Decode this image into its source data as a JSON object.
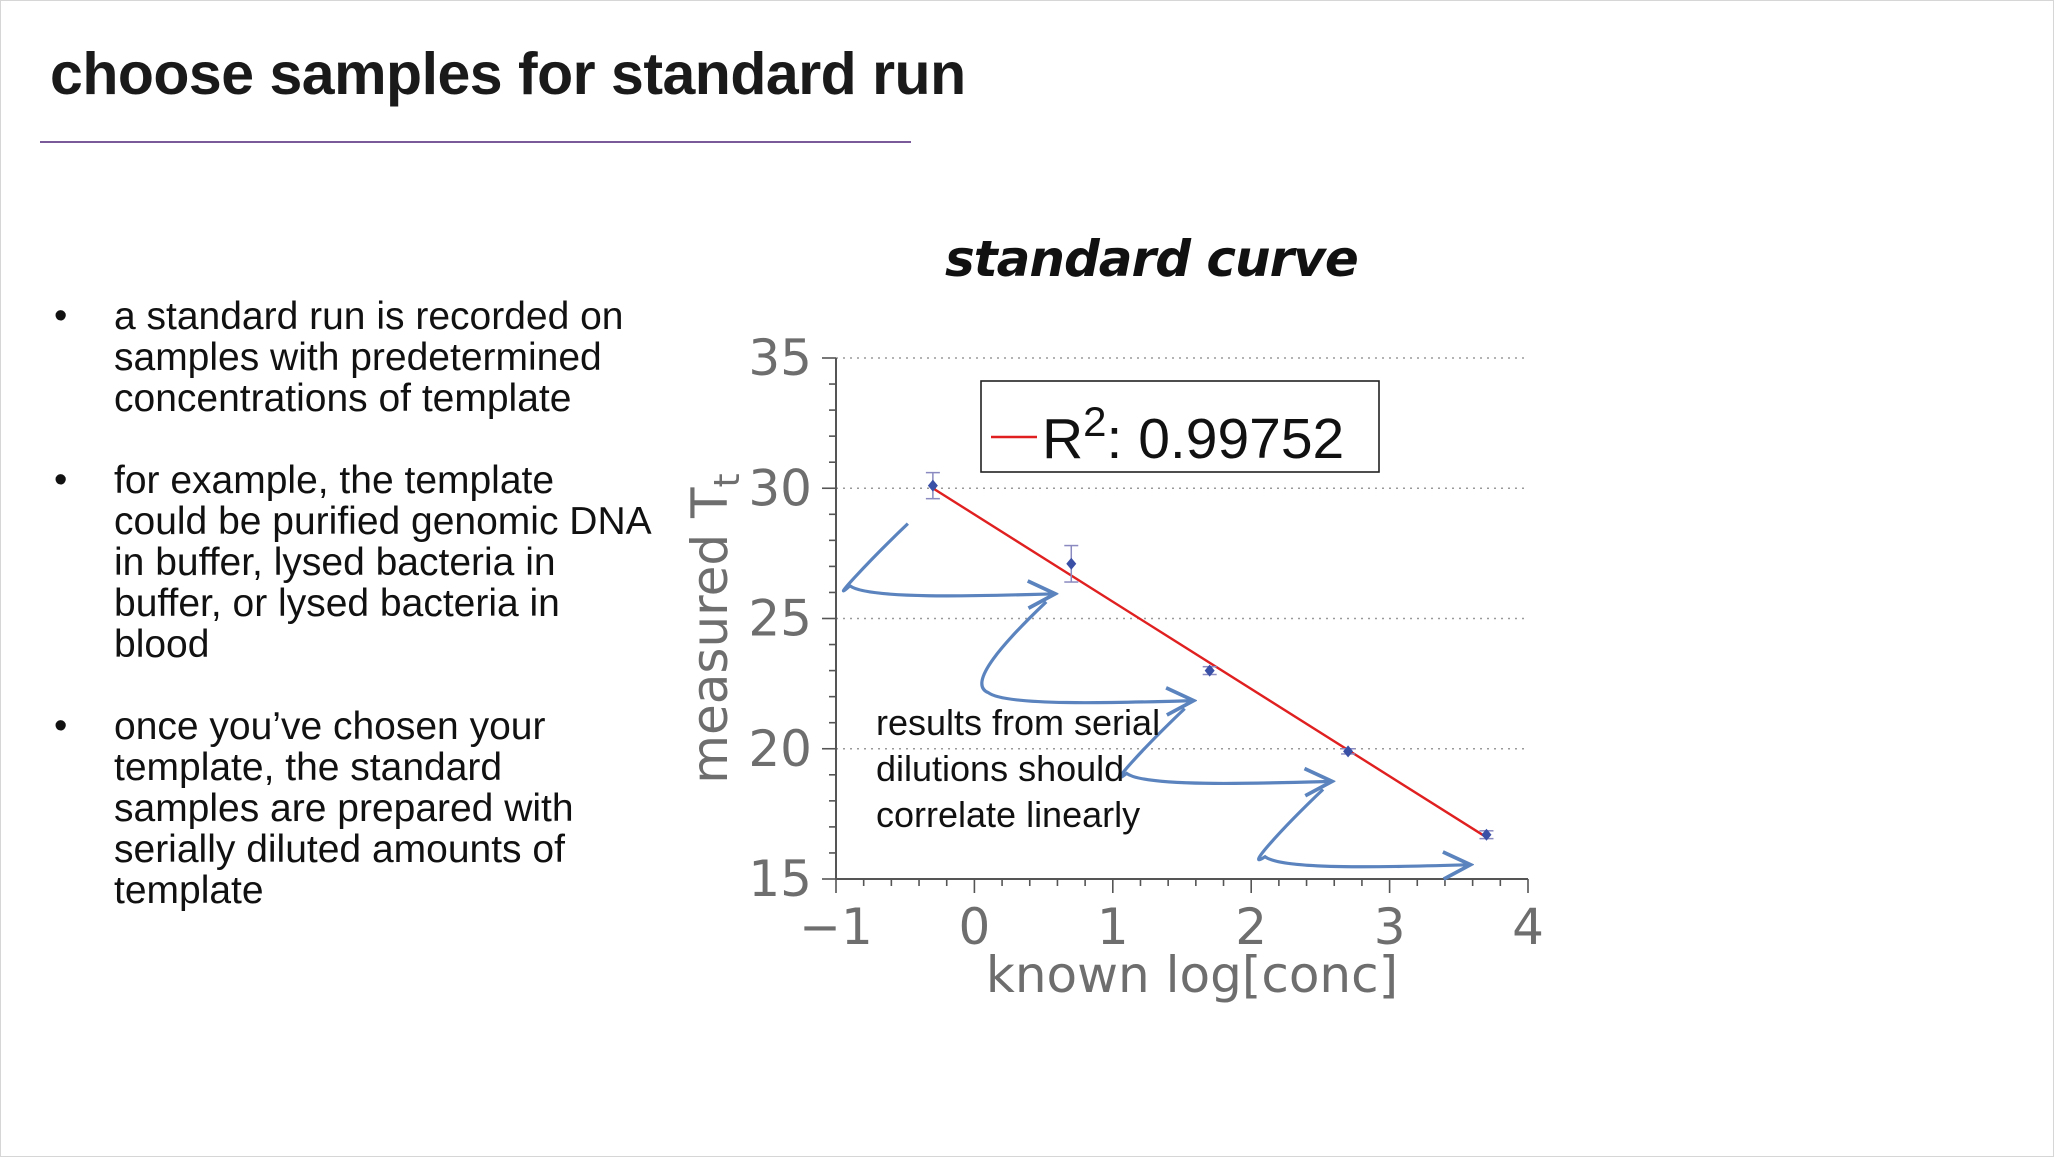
{
  "slide": {
    "title": "choose samples for standard run",
    "bullets": [
      "a standard run is recorded on samples with predetermined concentrations of template",
      "for example, the template could be purified genomic DNA in buffer, lysed bacteria in buffer, or lysed bacteria in blood",
      "once you’ve chosen your template, the standard samples are prepared with serially diluted amounts of template"
    ],
    "bullet_char": "•",
    "annotation": "results from serial dilutions should correlate linearly"
  },
  "chart_data": {
    "type": "scatter",
    "title": "standard curve",
    "xlabel": "known log[conc]",
    "ylabel": {
      "main": "measured T",
      "subscript": "t"
    },
    "xlim": [
      -1,
      4
    ],
    "ylim": [
      15,
      35
    ],
    "x_ticks": [
      "−1",
      "0",
      "1",
      "2",
      "3",
      "4"
    ],
    "y_ticks": [
      "15",
      "20",
      "25",
      "30",
      "35"
    ],
    "grid": "horizontal dotted",
    "series": [
      {
        "x": [
          -0.3,
          0.7,
          1.7,
          2.7,
          3.7
        ],
        "y": [
          30.1,
          27.1,
          23.0,
          19.9,
          16.7
        ],
        "error": [
          0.5,
          0.7,
          0.15,
          0.1,
          0.15
        ],
        "color": "#3a4fa6"
      }
    ],
    "fit": {
      "type": "linear",
      "x": [
        -0.3,
        3.7
      ],
      "y": [
        30.0,
        16.6
      ],
      "color": "#e02020",
      "legend": {
        "prefix": "R",
        "superscript": "2",
        "text": ": 0.99752"
      }
    },
    "arrow_color": "#5b84be"
  }
}
